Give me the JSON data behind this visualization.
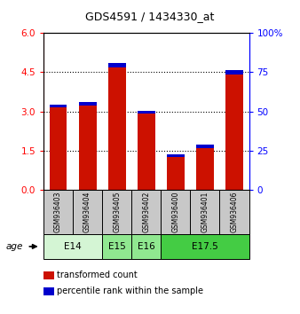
{
  "title": "GDS4591 / 1434330_at",
  "categories": [
    "GSM936403",
    "GSM936404",
    "GSM936405",
    "GSM936402",
    "GSM936400",
    "GSM936401",
    "GSM936406"
  ],
  "red_values": [
    3.25,
    3.35,
    4.87,
    3.01,
    1.35,
    1.72,
    4.57
  ],
  "blue_values": [
    3.15,
    3.22,
    4.67,
    2.93,
    1.25,
    1.6,
    4.4
  ],
  "age_groups": [
    {
      "label": "E14",
      "start": 0,
      "end": 2,
      "color": "#d4f5d4"
    },
    {
      "label": "E15",
      "start": 2,
      "end": 3,
      "color": "#90e890"
    },
    {
      "label": "E16",
      "start": 3,
      "end": 4,
      "color": "#90e890"
    },
    {
      "label": "E17.5",
      "start": 4,
      "end": 7,
      "color": "#44cc44"
    }
  ],
  "ylim_left": [
    0,
    6
  ],
  "ylim_right": [
    0,
    100
  ],
  "yticks_left": [
    0,
    1.5,
    3,
    4.5,
    6
  ],
  "yticks_right": [
    0,
    25,
    50,
    75,
    100
  ],
  "red_color": "#cc1100",
  "blue_color": "#0000cc",
  "bar_width": 0.6,
  "sample_box_color": "#c8c8c8",
  "background_color": "#ffffff"
}
